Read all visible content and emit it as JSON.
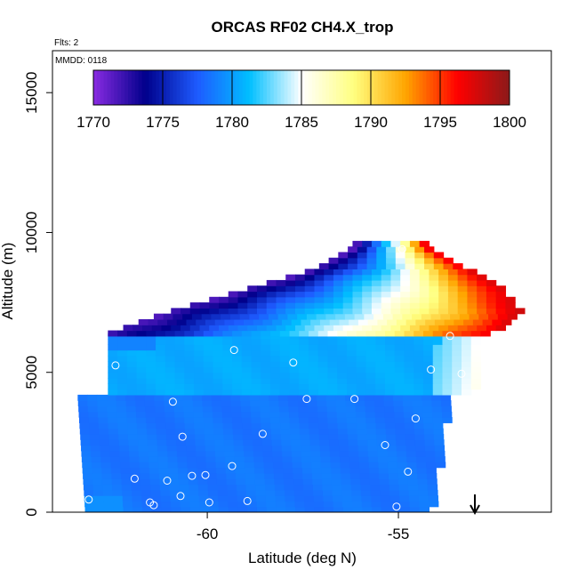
{
  "chart_data": {
    "type": "heatmap",
    "title": "ORCAS RF02 CH4.X_trop",
    "annotations": [
      "Flts: 2",
      "MMDD: 0118"
    ],
    "xlabel": "Latitude (deg N)",
    "ylabel": "Altitude (m)",
    "xlim": [
      -64.05,
      -51.0
    ],
    "ylim": [
      0,
      16500
    ],
    "x_ticks": [
      -60,
      -55
    ],
    "y_ticks": [
      0,
      5000,
      10000,
      15000
    ],
    "colorbar": {
      "ticks": [
        1770,
        1775,
        1780,
        1785,
        1790,
        1795,
        1800
      ],
      "range": [
        1770,
        1800
      ],
      "colors": [
        "#8a2be2",
        "#00008b",
        "#1e5bff",
        "#00bfff",
        "#ffffff",
        "#ffff80",
        "#ffa500",
        "#ff0000",
        "#8b1a1a"
      ],
      "placement": "top-inset"
    },
    "field": {
      "description_regions": [
        {
          "lat": [
            -63.2,
            -54.2
          ],
          "alt": [
            0,
            4200
          ],
          "value": 1778.5
        },
        {
          "lat": [
            -62.6,
            -53.6
          ],
          "alt": [
            4200,
            6300
          ],
          "value": 1780.5
        }
      ],
      "front_band": [
        {
          "alt": 6300,
          "lat_start": -62.6,
          "lat_end": -52.6
        },
        {
          "alt": 7000,
          "lat_start": -61.2,
          "lat_end": -51.9
        },
        {
          "alt": 7800,
          "lat_start": -59.2,
          "lat_end": -52.3
        },
        {
          "alt": 8600,
          "lat_start": -57.2,
          "lat_end": -53.3
        },
        {
          "alt": 9400,
          "lat_start": -56.2,
          "lat_end": -54.4
        }
      ]
    },
    "points": [
      {
        "lat": -63.1,
        "alt": 450
      },
      {
        "lat": -61.4,
        "alt": 250
      },
      {
        "lat": -61.5,
        "alt": 350
      },
      {
        "lat": -60.7,
        "alt": 580
      },
      {
        "lat": -60.4,
        "alt": 1300
      },
      {
        "lat": -60.05,
        "alt": 1330
      },
      {
        "lat": -59.95,
        "alt": 350
      },
      {
        "lat": -59.35,
        "alt": 1650
      },
      {
        "lat": -58.95,
        "alt": 400
      },
      {
        "lat": -61.9,
        "alt": 1200
      },
      {
        "lat": -61.05,
        "alt": 1130
      },
      {
        "lat": -60.65,
        "alt": 2700
      },
      {
        "lat": -60.9,
        "alt": 3950
      },
      {
        "lat": -58.55,
        "alt": 2800
      },
      {
        "lat": -57.4,
        "alt": 4050
      },
      {
        "lat": -56.15,
        "alt": 4050
      },
      {
        "lat": -55.35,
        "alt": 2400
      },
      {
        "lat": -54.75,
        "alt": 1450
      },
      {
        "lat": -55.05,
        "alt": 200
      },
      {
        "lat": -54.55,
        "alt": 3350
      },
      {
        "lat": -54.15,
        "alt": 5100
      },
      {
        "lat": -53.35,
        "alt": 4950
      },
      {
        "lat": -53.65,
        "alt": 6300
      },
      {
        "lat": -57.75,
        "alt": 5350
      },
      {
        "lat": -59.3,
        "alt": 5800
      },
      {
        "lat": -62.4,
        "alt": 5250
      },
      {
        "lat": -54.9,
        "alt": 9400
      },
      {
        "lat": -53.0,
        "alt": 9050
      },
      {
        "lat": -51.7,
        "alt": 7500
      }
    ],
    "arrow": {
      "lat": -53.0,
      "direction": "down"
    }
  }
}
